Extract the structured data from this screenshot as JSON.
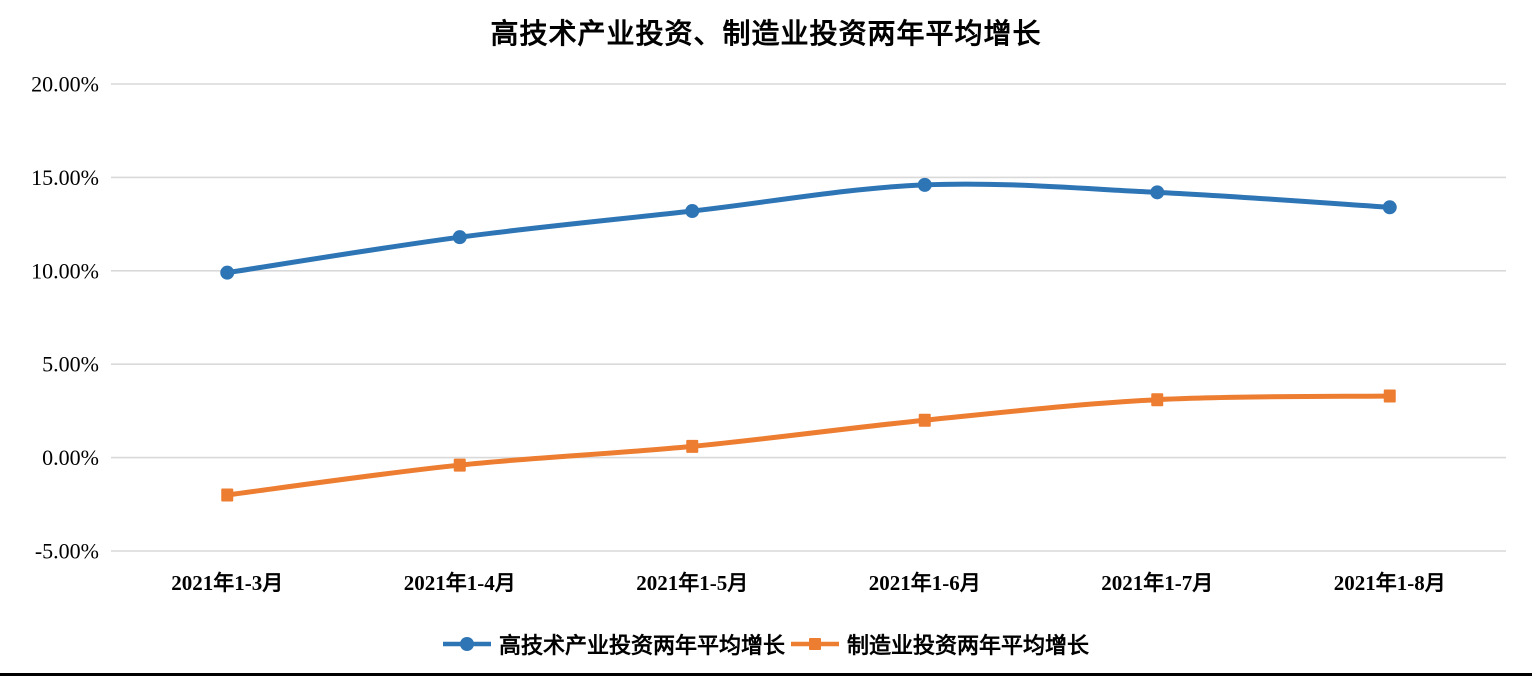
{
  "chart_data": {
    "type": "line",
    "title": "高技术产业投资、制造业投资两年平均增长",
    "categories": [
      "2021年1-3月",
      "2021年1-4月",
      "2021年1-5月",
      "2021年1-6月",
      "2021年1-7月",
      "2021年1-8月"
    ],
    "series": [
      {
        "name": "高技术产业投资两年平均增长",
        "color": "#2E75B6",
        "marker": "circle",
        "values": [
          9.9,
          11.8,
          13.2,
          14.6,
          14.2,
          13.4
        ]
      },
      {
        "name": "制造业投资两年平均增长",
        "color": "#ED7D31",
        "marker": "square",
        "values": [
          -2.0,
          -0.4,
          0.6,
          2.0,
          3.1,
          3.3
        ]
      }
    ],
    "y_axis": {
      "min": -5,
      "max": 20,
      "step": 5,
      "tick_labels": [
        "20.00%",
        "15.00%",
        "10.00%",
        "5.00%",
        "0.00%",
        "-5.00%"
      ],
      "tick_values": [
        20,
        15,
        10,
        5,
        0,
        -5
      ],
      "unit": "%"
    },
    "grid": true,
    "gridline_color": "#D9D9D9",
    "smooth": true,
    "legend_position": "bottom"
  }
}
